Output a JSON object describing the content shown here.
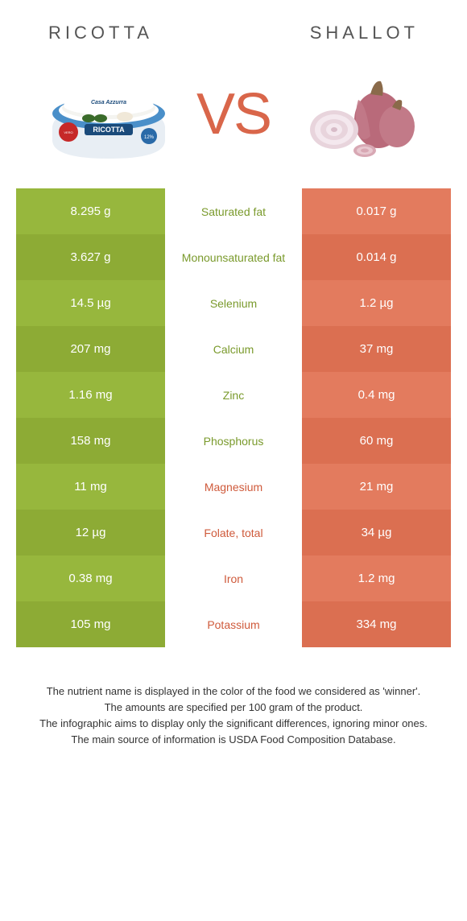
{
  "header": {
    "left_title": "Ricotta",
    "right_title": "Shallot"
  },
  "vs_label": "VS",
  "colors": {
    "left_primary": "#97b73d",
    "left_alt": "#8dab35",
    "right_primary": "#e37b5e",
    "right_alt": "#db6f51",
    "label_left_winner": "#7a9a2c",
    "label_right_winner": "#cf5a3b",
    "vs_color": "#d9664a",
    "title_color": "#555555",
    "body_text": "#333333",
    "background": "#ffffff"
  },
  "table": {
    "rows": [
      {
        "left": "8.295 g",
        "label": "Saturated fat",
        "right": "0.017 g",
        "winner": "left"
      },
      {
        "left": "3.627 g",
        "label": "Monounsaturated fat",
        "right": "0.014 g",
        "winner": "left"
      },
      {
        "left": "14.5 µg",
        "label": "Selenium",
        "right": "1.2 µg",
        "winner": "left"
      },
      {
        "left": "207 mg",
        "label": "Calcium",
        "right": "37 mg",
        "winner": "left"
      },
      {
        "left": "1.16 mg",
        "label": "Zinc",
        "right": "0.4 mg",
        "winner": "left"
      },
      {
        "left": "158 mg",
        "label": "Phosphorus",
        "right": "60 mg",
        "winner": "left"
      },
      {
        "left": "11 mg",
        "label": "Magnesium",
        "right": "21 mg",
        "winner": "right"
      },
      {
        "left": "12 µg",
        "label": "Folate, total",
        "right": "34 µg",
        "winner": "right"
      },
      {
        "left": "0.38 mg",
        "label": "Iron",
        "right": "1.2 mg",
        "winner": "right"
      },
      {
        "left": "105 mg",
        "label": "Potassium",
        "right": "334 mg",
        "winner": "right"
      }
    ]
  },
  "footnotes": [
    "The nutrient name is displayed in the color of the food we considered as 'winner'.",
    "The amounts are specified per 100 gram of the product.",
    "The infographic aims to display only the significant differences, ignoring minor ones.",
    "The main source of information is USDA Food Composition Database."
  ]
}
